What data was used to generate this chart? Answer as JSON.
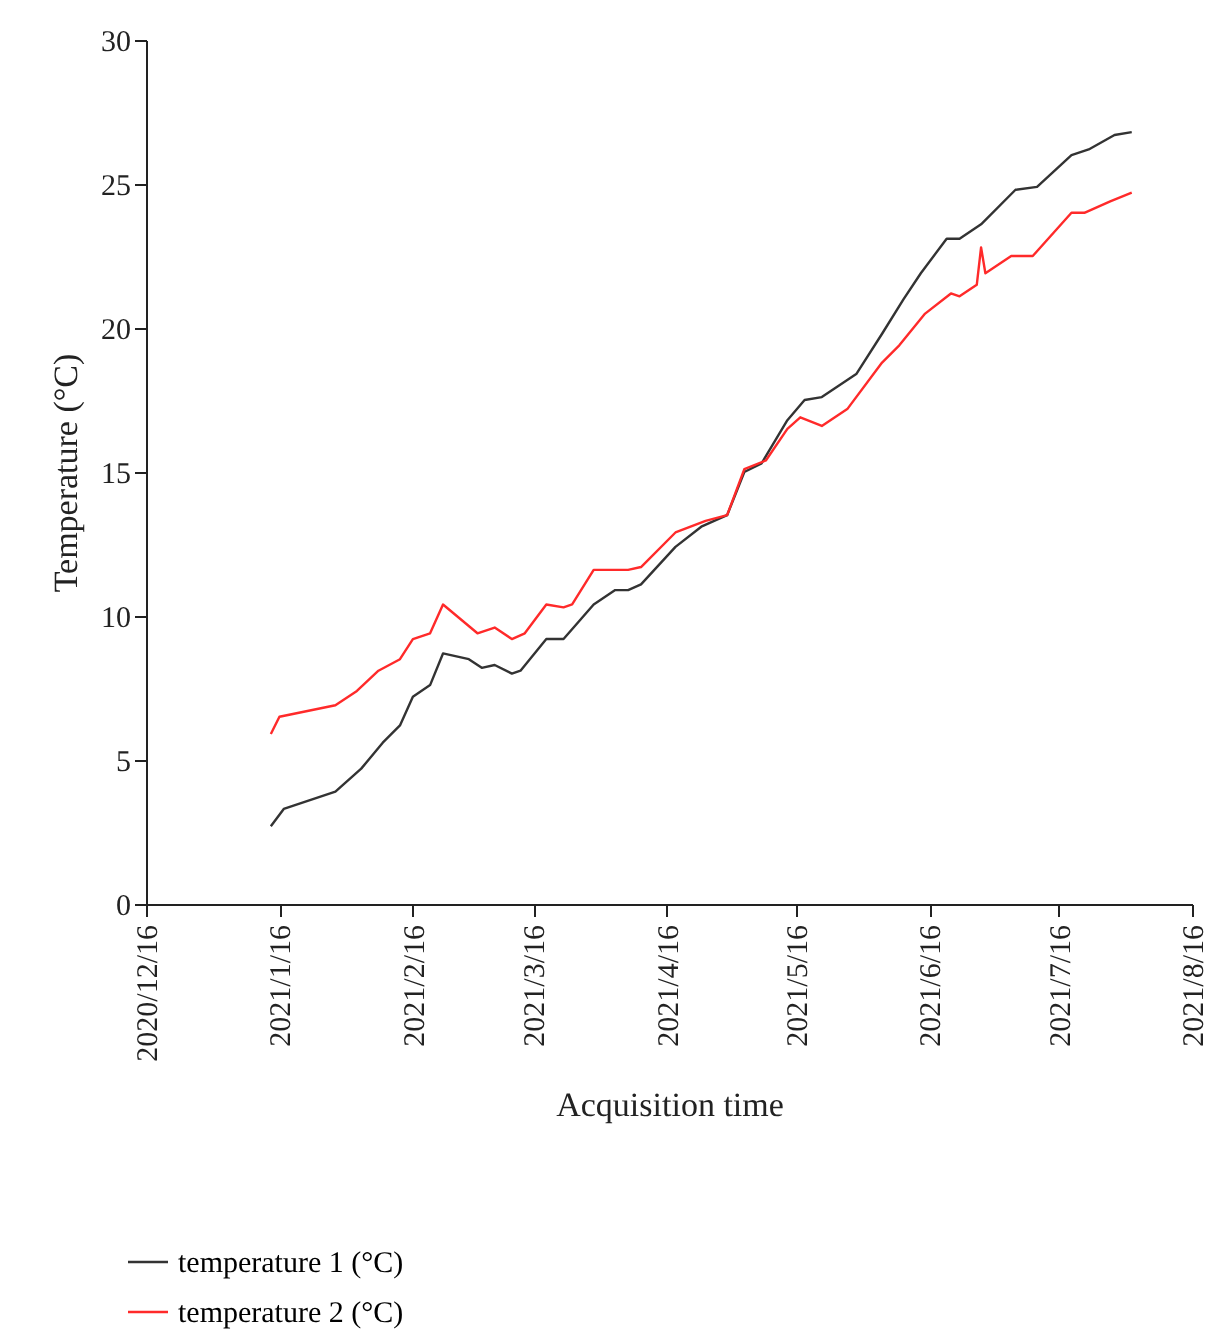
{
  "chart_data": {
    "type": "line",
    "xlabel": "Acquisition time",
    "ylabel": "Temperature (°C)",
    "xlim": [
      "2020-12-16",
      "2021-08-16"
    ],
    "xticks": [
      {
        "value": "2020-12-16",
        "label": "2020/12/16"
      },
      {
        "value": "2021-01-16",
        "label": "2021/1/16"
      },
      {
        "value": "2021-02-16",
        "label": "2021/2/16"
      },
      {
        "value": "2021-03-16",
        "label": "2021/3/16"
      },
      {
        "value": "2021-04-16",
        "label": "2021/4/16"
      },
      {
        "value": "2021-05-16",
        "label": "2021/5/16"
      },
      {
        "value": "2021-06-16",
        "label": "2021/6/16"
      },
      {
        "value": "2021-07-16",
        "label": "2021/7/16"
      },
      {
        "value": "2021-08-16",
        "label": "2021/8/16"
      }
    ],
    "ylim": [
      0,
      30
    ],
    "yticks": [
      0,
      5,
      10,
      15,
      20,
      25,
      30
    ],
    "grid": false,
    "legend": "bottom left",
    "marker": "none",
    "line_style": "solid",
    "series": [
      {
        "name": "temperature 1 (°C)",
        "color": "#333333",
        "x": [
          "2021-01-14",
          "2021-01-17",
          "2021-01-21",
          "2021-01-29",
          "2021-02-04",
          "2021-02-09",
          "2021-02-13",
          "2021-02-16",
          "2021-02-20",
          "2021-02-23",
          "2021-03-01",
          "2021-03-04",
          "2021-03-07",
          "2021-03-11",
          "2021-03-13",
          "2021-03-19",
          "2021-03-23",
          "2021-03-30",
          "2021-04-04",
          "2021-04-07",
          "2021-04-10",
          "2021-04-18",
          "2021-04-24",
          "2021-04-30",
          "2021-05-04",
          "2021-05-08",
          "2021-05-14",
          "2021-05-18",
          "2021-05-22",
          "2021-05-30",
          "2021-06-05",
          "2021-06-10",
          "2021-06-14",
          "2021-06-20",
          "2021-06-23",
          "2021-06-28",
          "2021-07-06",
          "2021-07-11",
          "2021-07-19",
          "2021-07-23",
          "2021-07-29",
          "2021-08-02"
        ],
        "values": [
          2.7,
          3.3,
          3.5,
          3.9,
          4.7,
          5.6,
          6.2,
          7.2,
          7.6,
          8.7,
          8.5,
          8.2,
          8.3,
          8.0,
          8.1,
          9.2,
          9.2,
          10.4,
          10.9,
          10.9,
          11.1,
          12.4,
          13.1,
          13.5,
          15.0,
          15.3,
          16.8,
          17.5,
          17.6,
          18.4,
          19.8,
          21.0,
          21.9,
          23.1,
          23.1,
          23.6,
          24.8,
          24.9,
          26.0,
          26.2,
          26.7,
          26.8
        ]
      },
      {
        "name": "temperature 2 (°C)",
        "color": "#ff2a2a",
        "x": [
          "2021-01-14",
          "2021-01-16",
          "2021-01-29",
          "2021-02-03",
          "2021-02-08",
          "2021-02-13",
          "2021-02-16",
          "2021-02-20",
          "2021-02-23",
          "2021-03-03",
          "2021-03-07",
          "2021-03-11",
          "2021-03-14",
          "2021-03-19",
          "2021-03-23",
          "2021-03-25",
          "2021-03-30",
          "2021-04-07",
          "2021-04-10",
          "2021-04-18",
          "2021-04-25",
          "2021-04-30",
          "2021-05-04",
          "2021-05-09",
          "2021-05-14",
          "2021-05-17",
          "2021-05-22",
          "2021-05-28",
          "2021-06-05",
          "2021-06-09",
          "2021-06-15",
          "2021-06-21",
          "2021-06-23",
          "2021-06-27",
          "2021-06-28",
          "2021-06-29",
          "2021-07-05",
          "2021-07-10",
          "2021-07-19",
          "2021-07-22",
          "2021-07-28",
          "2021-08-02"
        ],
        "values": [
          5.9,
          6.5,
          6.9,
          7.4,
          8.1,
          8.5,
          9.2,
          9.4,
          10.4,
          9.4,
          9.6,
          9.2,
          9.4,
          10.4,
          10.3,
          10.4,
          11.6,
          11.6,
          11.7,
          12.9,
          13.3,
          13.5,
          15.1,
          15.4,
          16.5,
          16.9,
          16.6,
          17.2,
          18.8,
          19.4,
          20.5,
          21.2,
          21.1,
          21.5,
          22.8,
          21.9,
          22.5,
          22.5,
          24.0,
          24.0,
          24.4,
          24.7
        ]
      }
    ]
  }
}
